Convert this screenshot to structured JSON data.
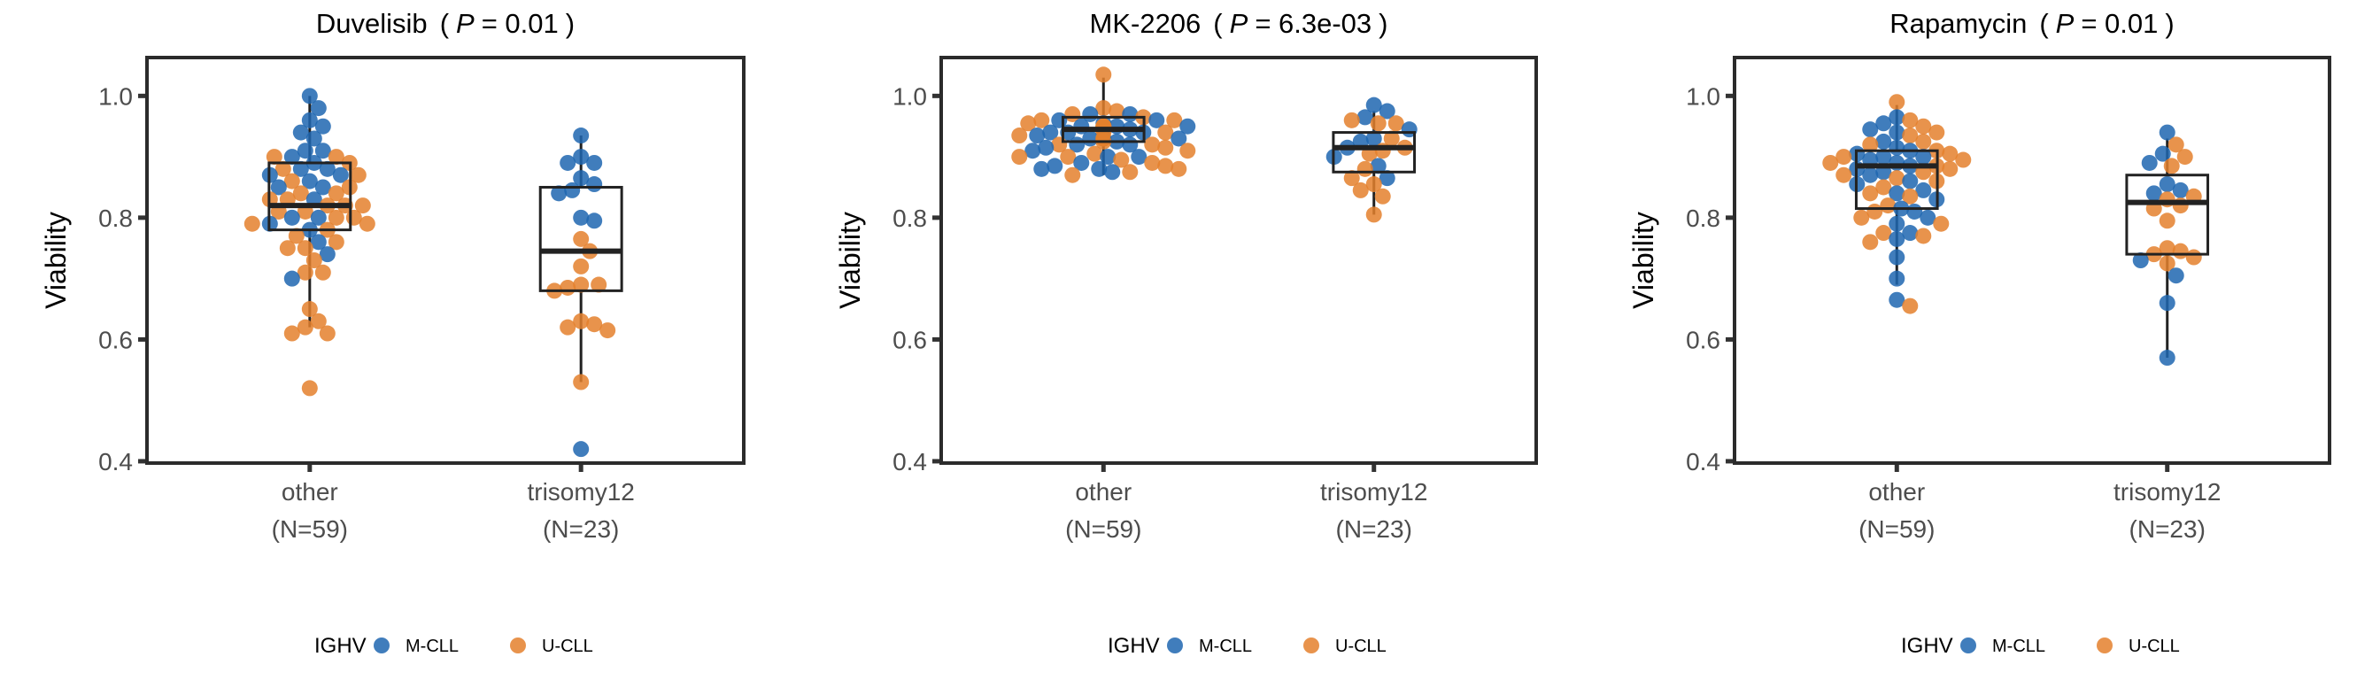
{
  "chart_data": [
    {
      "type": "box",
      "drug": "Duvelisib",
      "p_label": "P",
      "p_value": "= 0.01",
      "ylabel": "Viability",
      "ylim": [
        0.397,
        1.063
      ],
      "yticks": [
        0.4,
        0.6,
        0.8,
        1.0
      ],
      "ytick_labels": [
        "0.4",
        "0.6",
        "0.8",
        "1.0"
      ],
      "categories": [
        {
          "name": "other",
          "n_label": "(N=59)",
          "box": {
            "low": 0.62,
            "q1": 0.78,
            "median": 0.82,
            "q3": 0.89,
            "high": 1.0
          },
          "M-CLL": [
            1.0,
            0.98,
            0.96,
            0.95,
            0.94,
            0.93,
            0.91,
            0.91,
            0.9,
            0.89,
            0.88,
            0.88,
            0.87,
            0.87,
            0.86,
            0.85,
            0.85,
            0.83,
            0.8,
            0.8,
            0.79,
            0.78,
            0.76,
            0.74,
            0.7
          ],
          "U-CLL": [
            0.9,
            0.9,
            0.89,
            0.88,
            0.87,
            0.86,
            0.85,
            0.84,
            0.84,
            0.83,
            0.83,
            0.82,
            0.82,
            0.82,
            0.81,
            0.81,
            0.8,
            0.8,
            0.79,
            0.79,
            0.78,
            0.77,
            0.76,
            0.75,
            0.75,
            0.73,
            0.71,
            0.71,
            0.65,
            0.63,
            0.62,
            0.61,
            0.61,
            0.52
          ]
        },
        {
          "name": "trisomy12",
          "n_label": "(N=23)",
          "box": {
            "low": 0.53,
            "q1": 0.68,
            "median": 0.745,
            "q3": 0.85,
            "high": 0.935
          },
          "M-CLL": [
            0.935,
            0.9,
            0.89,
            0.89,
            0.865,
            0.855,
            0.845,
            0.84,
            0.8,
            0.795,
            0.42
          ],
          "U-CLL": [
            0.765,
            0.745,
            0.72,
            0.69,
            0.69,
            0.685,
            0.68,
            0.63,
            0.625,
            0.62,
            0.615,
            0.53
          ]
        }
      ]
    },
    {
      "type": "box",
      "drug": "MK-2206",
      "p_label": "P",
      "p_value": "= 6.3e-03",
      "ylabel": "Viability",
      "ylim": [
        0.397,
        1.063
      ],
      "yticks": [
        0.4,
        0.6,
        0.8,
        1.0
      ],
      "ytick_labels": [
        "0.4",
        "0.6",
        "0.8",
        "1.0"
      ],
      "categories": [
        {
          "name": "other",
          "n_label": "(N=59)",
          "box": {
            "low": 0.87,
            "q1": 0.925,
            "median": 0.945,
            "q3": 0.965,
            "high": 1.03
          },
          "M-CLL": [
            0.97,
            0.97,
            0.96,
            0.96,
            0.955,
            0.95,
            0.95,
            0.95,
            0.945,
            0.94,
            0.94,
            0.94,
            0.935,
            0.93,
            0.93,
            0.93,
            0.925,
            0.92,
            0.92,
            0.915,
            0.91,
            0.9,
            0.9,
            0.89,
            0.885,
            0.88,
            0.88,
            0.875
          ],
          "U-CLL": [
            1.035,
            0.98,
            0.975,
            0.97,
            0.965,
            0.96,
            0.96,
            0.955,
            0.95,
            0.95,
            0.95,
            0.945,
            0.94,
            0.94,
            0.935,
            0.93,
            0.93,
            0.925,
            0.92,
            0.92,
            0.915,
            0.91,
            0.905,
            0.9,
            0.9,
            0.895,
            0.89,
            0.885,
            0.88,
            0.875,
            0.87
          ]
        },
        {
          "name": "trisomy12",
          "n_label": "(N=23)",
          "box": {
            "low": 0.805,
            "q1": 0.875,
            "median": 0.915,
            "q3": 0.94,
            "high": 0.975
          },
          "M-CLL": [
            0.985,
            0.975,
            0.965,
            0.945,
            0.93,
            0.925,
            0.915,
            0.9,
            0.885,
            0.865
          ],
          "U-CLL": [
            0.96,
            0.955,
            0.955,
            0.93,
            0.915,
            0.91,
            0.905,
            0.88,
            0.865,
            0.855,
            0.845,
            0.835,
            0.805
          ]
        }
      ]
    },
    {
      "type": "box",
      "drug": "Rapamycin",
      "p_label": "P",
      "p_value": "= 0.01",
      "ylabel": "Viability",
      "ylim": [
        0.397,
        1.063
      ],
      "yticks": [
        0.4,
        0.6,
        0.8,
        1.0
      ],
      "ytick_labels": [
        "0.4",
        "0.6",
        "0.8",
        "1.0"
      ],
      "categories": [
        {
          "name": "other",
          "n_label": "(N=59)",
          "box": {
            "low": 0.69,
            "q1": 0.815,
            "median": 0.885,
            "q3": 0.91,
            "high": 0.985
          },
          "M-CLL": [
            0.965,
            0.955,
            0.945,
            0.94,
            0.925,
            0.915,
            0.91,
            0.905,
            0.9,
            0.9,
            0.895,
            0.89,
            0.885,
            0.88,
            0.875,
            0.87,
            0.86,
            0.855,
            0.845,
            0.84,
            0.83,
            0.815,
            0.81,
            0.8,
            0.79,
            0.775,
            0.765,
            0.735,
            0.7,
            0.665
          ],
          "U-CLL": [
            0.99,
            0.96,
            0.95,
            0.94,
            0.935,
            0.925,
            0.92,
            0.91,
            0.905,
            0.9,
            0.895,
            0.89,
            0.885,
            0.88,
            0.875,
            0.87,
            0.865,
            0.86,
            0.85,
            0.84,
            0.835,
            0.82,
            0.81,
            0.8,
            0.79,
            0.775,
            0.77,
            0.76,
            0.655
          ]
        },
        {
          "name": "trisomy12",
          "n_label": "(N=23)",
          "box": {
            "low": 0.57,
            "q1": 0.74,
            "median": 0.825,
            "q3": 0.87,
            "high": 0.93
          },
          "M-CLL": [
            0.94,
            0.905,
            0.89,
            0.855,
            0.845,
            0.84,
            0.73,
            0.705,
            0.66,
            0.57
          ],
          "U-CLL": [
            0.92,
            0.9,
            0.885,
            0.835,
            0.83,
            0.82,
            0.815,
            0.795,
            0.75,
            0.745,
            0.74,
            0.735,
            0.725
          ]
        }
      ]
    }
  ],
  "legend": {
    "title": "IGHV",
    "entries": [
      {
        "label": "M-CLL",
        "color": "#1f66b0"
      },
      {
        "label": "U-CLL",
        "color": "#e4802d"
      }
    ]
  }
}
